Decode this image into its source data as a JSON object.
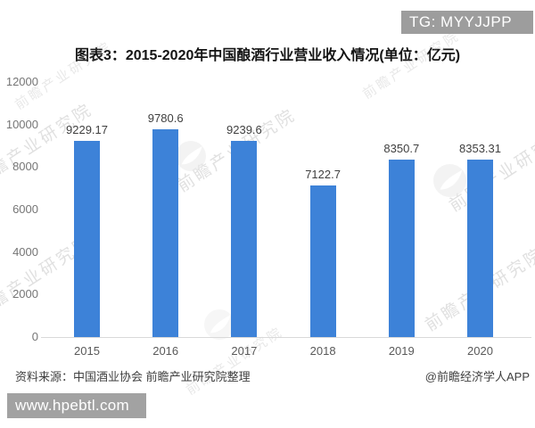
{
  "badge": {
    "text": "TG: MYYJJPP"
  },
  "title": "图表3：2015-2020年中国酿酒行业营业收入情况(单位：亿元)",
  "chart_data": {
    "type": "bar",
    "title": "图表3：2015-2020年中国酿酒行业营业收入情况(单位：亿元)",
    "categories": [
      "2015",
      "2016",
      "2017",
      "2018",
      "2019",
      "2020"
    ],
    "values": [
      9229.17,
      9780.6,
      9239.6,
      7122.7,
      8350.7,
      8353.31
    ],
    "value_labels": [
      "9229.17",
      "9780.6",
      "9239.6",
      "7122.7",
      "8350.7",
      "8353.31"
    ],
    "unit": "亿元",
    "xlabel": "",
    "ylabel": "",
    "ylim": [
      0,
      12000
    ],
    "yticks": [
      0,
      2000,
      4000,
      6000,
      8000,
      10000,
      12000
    ],
    "grid": false,
    "legend": "none",
    "bar_color": "#3d82d8"
  },
  "footer": {
    "source": "资料来源：中国酒业协会 前瞻产业研究院整理",
    "credit": "@前瞻经济学人APP"
  },
  "bottom_bar": {
    "url": "www.hpebtl.com"
  },
  "watermark": {
    "text": "前瞻产业研究院"
  }
}
